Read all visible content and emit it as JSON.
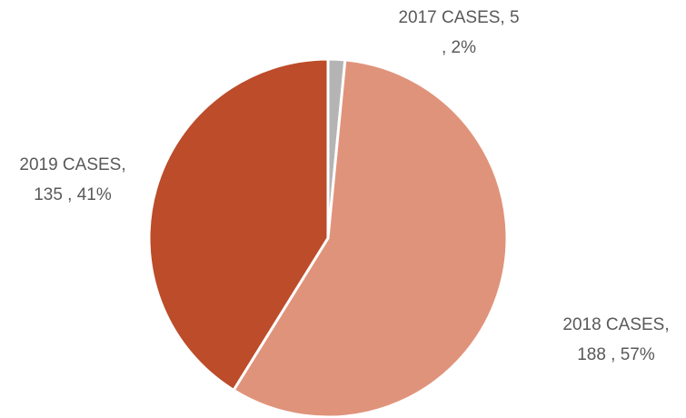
{
  "chart_data": {
    "type": "pie",
    "values": [
      5,
      188,
      135
    ],
    "colors": [
      "#b4b4b4",
      "#e0937b",
      "#bc4c2a"
    ],
    "value_labels": [
      [
        "2017 CASES, 5",
        ", 2%"
      ],
      [
        "2018 CASES,",
        "188 , 57%"
      ],
      [
        "2019 CASES,",
        "135 , 41%"
      ]
    ]
  }
}
